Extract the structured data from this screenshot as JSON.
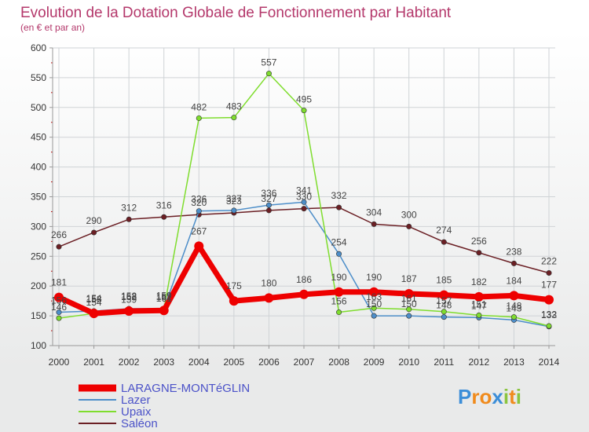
{
  "chart_data": {
    "type": "line",
    "title": "Evolution de la Dotation Globale de Fonctionnement par Habitant",
    "subtitle": "(en € et par an)",
    "x": [
      "2000",
      "2001",
      "2002",
      "2003",
      "2004",
      "2005",
      "2006",
      "2007",
      "2008",
      "2009",
      "2010",
      "2011",
      "2012",
      "2013",
      "2014"
    ],
    "ylim": [
      100,
      600
    ],
    "yticks": [
      "100",
      "150",
      "200",
      "250",
      "300",
      "350",
      "400",
      "450",
      "500",
      "550",
      "600"
    ],
    "grid": true,
    "legend_position": "bottom-left",
    "series": [
      {
        "name": "Saléon",
        "color": "#6b1f24",
        "width": 1.5,
        "values": [
          266,
          290,
          312,
          316,
          320,
          323,
          327,
          330,
          332,
          304,
          300,
          274,
          256,
          238,
          222
        ]
      },
      {
        "name": "Lazer",
        "color": "#4d8ec9",
        "width": 1.5,
        "values": [
          156,
          158,
          162,
          162,
          326,
          327,
          336,
          341,
          254,
          150,
          150,
          148,
          147,
          143,
          132
        ]
      },
      {
        "name": "Upaix",
        "color": "#7fdd2e",
        "width": 1.5,
        "values": [
          146,
          154,
          159,
          161,
          482,
          483,
          557,
          495,
          156,
          163,
          161,
          157,
          151,
          148,
          133
        ]
      },
      {
        "name": "LARAGNE-MONTéGLIN",
        "color": "#ee0000",
        "width": 7,
        "values": [
          181,
          154,
          158,
          159,
          267,
          175,
          180,
          186,
          190,
          190,
          187,
          185,
          182,
          184,
          177
        ]
      }
    ],
    "legend": [
      "LARAGNE-MONTéGLIN",
      "Lazer",
      "Upaix",
      "Saléon"
    ]
  },
  "logo": {
    "letters": [
      "P",
      "r",
      "o",
      "x",
      "i",
      "t",
      "i"
    ],
    "colors": [
      "#3c8ed8",
      "#f08b1d",
      "#f08b1d",
      "#3c8ed8",
      "#8ac43f",
      "#f08b1d",
      "#8ac43f"
    ]
  }
}
